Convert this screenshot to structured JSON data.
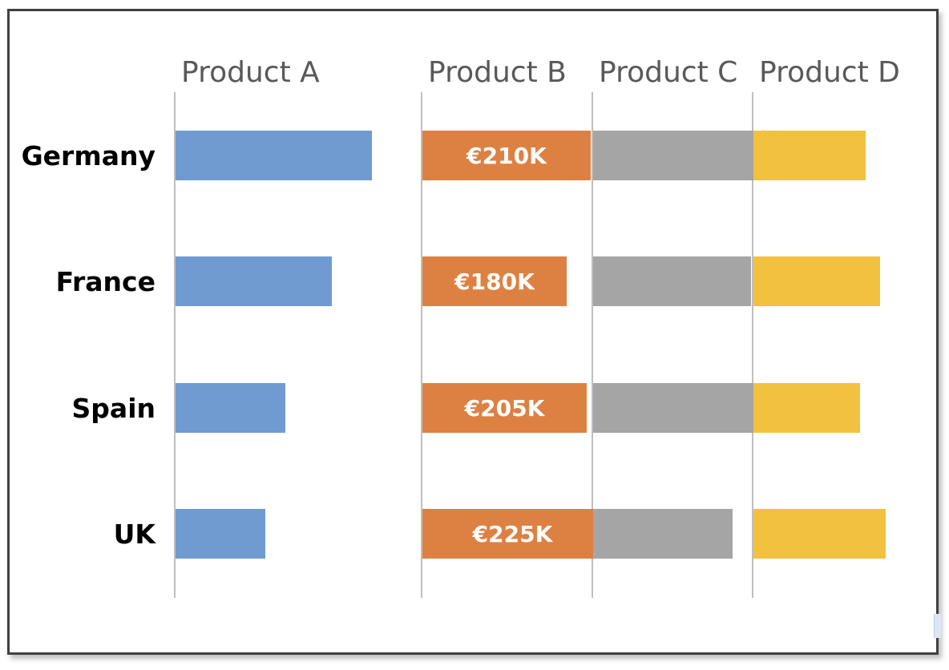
{
  "chart_data": {
    "type": "bar",
    "orientation": "horizontal",
    "layout": "small-multiples",
    "title": "",
    "categories": [
      "Germany",
      "France",
      "Spain",
      "UK"
    ],
    "series": [
      {
        "name": "Product A",
        "color": "#6f9bd1",
        "values": [
          245,
          195,
          137,
          112
        ],
        "show_labels": false
      },
      {
        "name": "Product B",
        "color": "#dd8143",
        "values": [
          210,
          180,
          205,
          225
        ],
        "show_labels": true,
        "labels": [
          "€210K",
          "€180K",
          "€205K",
          "€225K"
        ]
      },
      {
        "name": "Product C",
        "color": "#a5a5a5",
        "values": [
          210,
          197,
          233,
          174
        ],
        "show_labels": false
      },
      {
        "name": "Product D",
        "color": "#f2c13f",
        "values": [
          140,
          158,
          133,
          165
        ],
        "show_labels": false
      }
    ],
    "xlim": [
      0,
      245
    ],
    "grid": false,
    "legend": "none"
  }
}
